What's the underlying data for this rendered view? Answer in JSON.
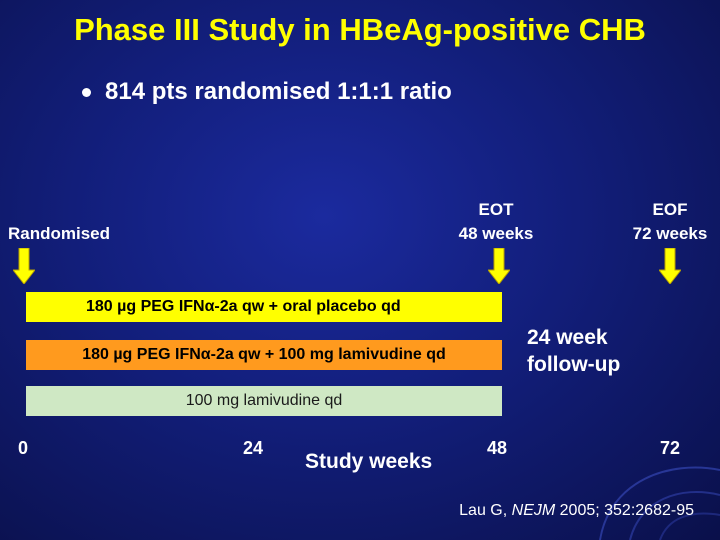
{
  "title": "Phase III Study in HBeAg-positive CHB",
  "bullet": "814 pts randomised 1:1:1 ratio",
  "milestones": {
    "randomised": "Randomised",
    "eot_line1": "EOT",
    "eot_line2": "48 weeks",
    "eof_line1": "EOF",
    "eof_line2": "72 weeks"
  },
  "arms": [
    {
      "label": "180 µg PEG IFNα-2a qw + oral placebo qd",
      "color": "#ffff00"
    },
    {
      "label": "180 µg PEG IFNα-2a qw + 100 mg lamivudine qd",
      "color": "#ff9a1e"
    },
    {
      "label": "100 mg lamivudine qd",
      "color": "#cfe8c4"
    }
  ],
  "follow_up": {
    "line1": "24 week",
    "line2": "follow-up"
  },
  "axis": {
    "ticks": [
      "0",
      "24",
      "48",
      "72"
    ],
    "label": "Study weeks"
  },
  "citation": {
    "authors": "Lau G, ",
    "journal": "NEJM",
    "details": " 2005; 352:2682-95"
  },
  "colors": {
    "title": "#ffff00",
    "arrow": "#ffff00",
    "background": "#121e7a"
  }
}
